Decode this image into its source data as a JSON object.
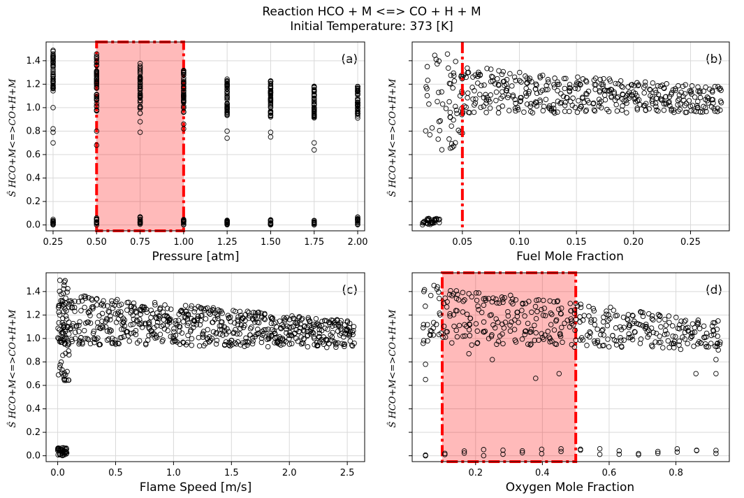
{
  "figure": {
    "title_line1": "Reaction HCO + M <=> CO + H + M",
    "title_line2": "Initial Temperature: 373 [K]"
  },
  "chart_data": [
    {
      "id": "a",
      "type": "scatter",
      "panel_label": "(a)",
      "xlabel": "Pressure [atm]",
      "ylabel": "Ŝ HCO+M<=>CO+H+M",
      "xlim": [
        0.21,
        2.04
      ],
      "ylim": [
        -0.05,
        1.56
      ],
      "xticks": [
        0.25,
        0.5,
        0.75,
        1.0,
        1.25,
        1.5,
        1.75,
        2.0
      ],
      "xtick_labels": [
        "0.25",
        "0.50",
        "0.75",
        "1.00",
        "1.25",
        "1.50",
        "1.75",
        "2.00"
      ],
      "yticks": [
        0.0,
        0.2,
        0.4,
        0.6,
        0.8,
        1.0,
        1.2,
        1.4
      ],
      "ytick_labels": [
        "0.0",
        "0.2",
        "0.4",
        "0.6",
        "0.8",
        "1.0",
        "1.2",
        "1.4"
      ],
      "clusters": [
        {
          "x": 0.25,
          "hi_min": 1.1,
          "hi_max": 1.49,
          "lo_max": 0.05,
          "outliers": [
            1.0,
            0.82,
            0.79,
            0.7
          ]
        },
        {
          "x": 0.5,
          "hi_min": 0.97,
          "hi_max": 1.46,
          "lo_max": 0.06,
          "outliers": [
            0.8,
            0.68
          ]
        },
        {
          "x": 0.75,
          "hi_min": 0.95,
          "hi_max": 1.39,
          "lo_max": 0.07,
          "outliers": [
            0.88,
            0.79
          ]
        },
        {
          "x": 1.0,
          "hi_min": 0.95,
          "hi_max": 1.32,
          "lo_max": 0.05,
          "outliers": [
            0.86,
            0.82
          ]
        },
        {
          "x": 1.25,
          "hi_min": 0.92,
          "hi_max": 1.26,
          "lo_max": 0.04,
          "outliers": [
            0.8,
            0.74
          ]
        },
        {
          "x": 1.5,
          "hi_min": 0.92,
          "hi_max": 1.23,
          "lo_max": 0.05,
          "outliers": [
            0.79,
            0.75
          ]
        },
        {
          "x": 1.75,
          "hi_min": 0.91,
          "hi_max": 1.2,
          "lo_max": 0.04,
          "outliers": [
            0.7,
            0.64
          ]
        },
        {
          "x": 2.0,
          "hi_min": 0.91,
          "hi_max": 1.19,
          "lo_max": 0.07,
          "outliers": []
        }
      ],
      "highlight_region": {
        "x0": 0.5,
        "x1": 1.0,
        "color": "#ff0000"
      }
    },
    {
      "id": "b",
      "type": "scatter",
      "panel_label": "(b)",
      "xlabel": "Fuel Mole Fraction",
      "ylabel": "Ŝ HCO+M<=>CO+H+M",
      "xlim": [
        0.006,
        0.284
      ],
      "ylim": [
        -0.05,
        1.56
      ],
      "xticks": [
        0.05,
        0.1,
        0.15,
        0.2,
        0.25
      ],
      "xtick_labels": [
        "0.05",
        "0.10",
        "0.15",
        "0.20",
        "0.25"
      ],
      "yticks": [
        0.0,
        0.2,
        0.4,
        0.6,
        0.8,
        1.0,
        1.2,
        1.4
      ],
      "band": {
        "x_start": 0.05,
        "x_end": 0.275,
        "hi_start": 1.35,
        "hi_end": 1.18,
        "lo_start": 0.95,
        "lo_end": 0.96
      },
      "low_cluster": {
        "x_start": 0.015,
        "x_end": 0.03,
        "y_max": 0.06
      },
      "spray_region": {
        "x_start": 0.015,
        "x_end": 0.05,
        "y_min": 0.64,
        "y_max": 1.49
      },
      "threshold_line": {
        "x": 0.05,
        "color": "#ff0000"
      }
    },
    {
      "id": "c",
      "type": "scatter",
      "panel_label": "(c)",
      "xlabel": "Flame Speed [m/s]",
      "ylabel": "Ŝ HCO+M<=>CO+H+M",
      "xlim": [
        -0.1,
        2.65
      ],
      "ylim": [
        -0.05,
        1.56
      ],
      "xticks": [
        0.0,
        0.5,
        1.0,
        1.5,
        2.0,
        2.5
      ],
      "xtick_labels": [
        "0.0",
        "0.5",
        "1.0",
        "1.5",
        "2.0",
        "2.5"
      ],
      "yticks": [
        0.0,
        0.2,
        0.4,
        0.6,
        0.8,
        1.0,
        1.2,
        1.4
      ],
      "ytick_labels": [
        "0.0",
        "0.2",
        "0.4",
        "0.6",
        "0.8",
        "1.0",
        "1.2",
        "1.4"
      ],
      "band": {
        "x_start": 0.05,
        "x_end": 2.55,
        "hi_start": 1.38,
        "hi_end": 1.15,
        "lo_start": 0.95,
        "lo_end": 0.92
      },
      "near_zero": {
        "x_max": 0.1,
        "y_min": 0.64,
        "y_max": 1.5,
        "low_y_max": 0.07
      }
    },
    {
      "id": "d",
      "type": "scatter",
      "panel_label": "(d)",
      "xlabel": "Oxygen Mole Fraction",
      "ylabel": "Ŝ HCO+M<=>CO+H+M",
      "xlim": [
        0.01,
        0.96
      ],
      "ylim": [
        -0.05,
        1.56
      ],
      "xticks": [
        0.2,
        0.4,
        0.6,
        0.8
      ],
      "xtick_labels": [
        "0.2",
        "0.4",
        "0.6",
        "0.8"
      ],
      "yticks": [
        0.0,
        0.2,
        0.4,
        0.6,
        0.8,
        1.0,
        1.2,
        1.4
      ],
      "band": {
        "x_start": 0.05,
        "x_end": 0.93,
        "hi_start": 1.46,
        "hi_end": 1.15,
        "lo_start": 0.95,
        "lo_end": 0.9
      },
      "low_points": {
        "x_start": 0.05,
        "x_end": 0.92,
        "y_max": 0.06
      },
      "highlight_region": {
        "x0": 0.1,
        "x1": 0.5,
        "color": "#ff0000"
      }
    }
  ]
}
